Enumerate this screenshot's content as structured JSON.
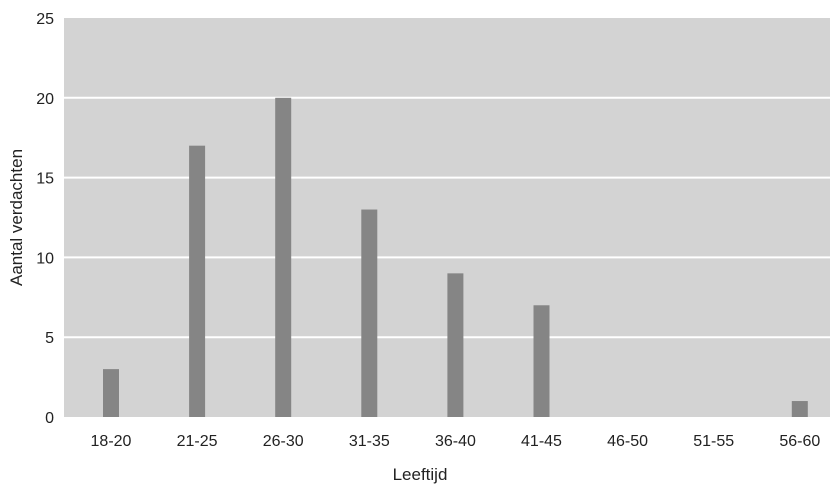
{
  "chart_data": {
    "type": "bar",
    "title": "",
    "xlabel": "Leeftijd",
    "ylabel": "Aantal verdachten",
    "categories": [
      "18-20",
      "21-25",
      "26-30",
      "31-35",
      "36-40",
      "41-45",
      "46-50",
      "51-55",
      "56-60"
    ],
    "values": [
      3,
      17,
      20,
      13,
      9,
      7,
      0,
      0,
      1
    ],
    "ylim": [
      0,
      25
    ],
    "yticks": [
      0,
      5,
      10,
      15,
      20,
      25
    ],
    "grid": true,
    "legend": "none",
    "colors": {
      "bar": "#858585",
      "plot_background": "#d3d3d3",
      "gridline": "#ffffff"
    }
  }
}
